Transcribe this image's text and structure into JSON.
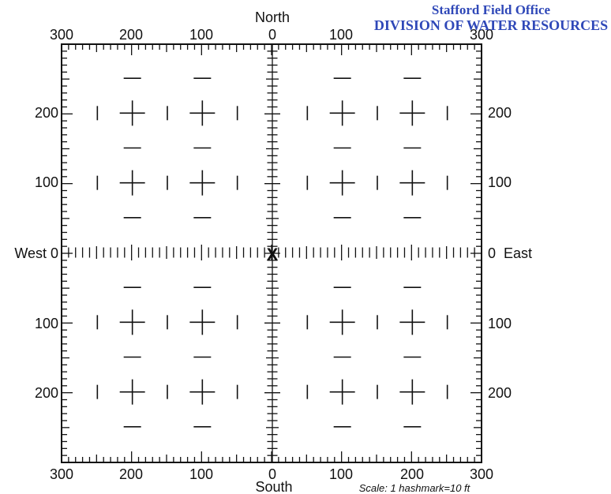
{
  "stamp": {
    "line1": "Stafford Field Office",
    "line2": "DIVISION OF WATER RESOURCES",
    "color": "#2f48b8"
  },
  "compass": {
    "north": "North",
    "south": "South",
    "west": "West 0",
    "east": "0  East"
  },
  "scale_note": "Scale:  1 hashmark=10 ft",
  "top_ticks": [
    "300",
    "200",
    "100",
    "0",
    "100",
    "300"
  ],
  "bottom_ticks": [
    "300",
    "200",
    "100",
    "0",
    "100",
    "200",
    "300"
  ],
  "left_ticks": [
    "200",
    "100",
    "100",
    "200"
  ],
  "right_ticks": [
    "200",
    "100",
    "100",
    "200"
  ],
  "center_marker": "X",
  "grid": {
    "unit_ft": 10,
    "extent_ft": 300,
    "line_color": "#111111"
  }
}
